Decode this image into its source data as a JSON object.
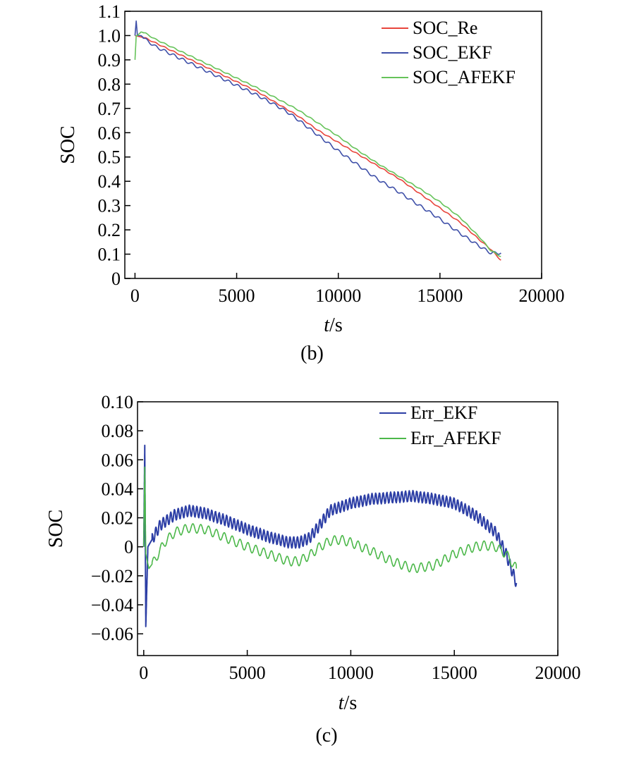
{
  "chart_data": [
    {
      "type": "line",
      "panel": "(b)",
      "caption": "(b)",
      "title": "",
      "xlabel_var": "t",
      "xlabel_unit": "/s",
      "ylabel": "SOC",
      "xlim": [
        -500,
        20000
      ],
      "ylim": [
        0,
        1.1
      ],
      "xticks": [
        0,
        5000,
        10000,
        15000,
        20000
      ],
      "xtick_labels": [
        "0",
        "5000",
        "10000",
        "15000",
        "20000"
      ],
      "yticks": [
        0,
        0.1,
        0.2,
        0.3,
        0.4,
        0.5,
        0.6,
        0.7,
        0.8,
        0.9,
        1.0,
        1.1
      ],
      "ytick_labels": [
        "0",
        "0.1",
        "0.2",
        "0.3",
        "0.4",
        "0.5",
        "0.6",
        "0.7",
        "0.8",
        "0.9",
        "1.0",
        "1.1"
      ],
      "grid": false,
      "legend_position": "top-right",
      "series": [
        {
          "name": "SOC_Re",
          "color": "#e8453c",
          "x": [
            0,
            500,
            1000,
            2000,
            3000,
            4000,
            5000,
            6000,
            7000,
            8000,
            9000,
            10000,
            11000,
            12000,
            13000,
            14000,
            15000,
            16000,
            17000,
            17500,
            18000
          ],
          "y": [
            1.0,
            0.99,
            0.97,
            0.93,
            0.89,
            0.85,
            0.81,
            0.77,
            0.72,
            0.67,
            0.61,
            0.56,
            0.51,
            0.46,
            0.41,
            0.35,
            0.29,
            0.23,
            0.155,
            0.12,
            0.075
          ]
        },
        {
          "name": "SOC_EKF",
          "color": "#3e4fa8",
          "x": [
            0,
            60,
            120,
            300,
            500,
            1000,
            2000,
            3000,
            4000,
            5000,
            6000,
            7000,
            7500,
            8000,
            9000,
            10000,
            11000,
            12000,
            13000,
            14000,
            15000,
            16000,
            17000,
            17500,
            18000
          ],
          "y": [
            1.0,
            1.06,
            1.0,
            1.0,
            0.985,
            0.955,
            0.915,
            0.875,
            0.835,
            0.795,
            0.755,
            0.71,
            0.685,
            0.655,
            0.59,
            0.525,
            0.465,
            0.405,
            0.355,
            0.3,
            0.245,
            0.185,
            0.13,
            0.105,
            0.105
          ]
        },
        {
          "name": "SOC_AFEKF",
          "color": "#66c35a",
          "x": [
            0,
            60,
            120,
            300,
            500,
            1000,
            2000,
            3000,
            4000,
            5000,
            6000,
            7000,
            8000,
            9000,
            10000,
            11000,
            12000,
            13000,
            14000,
            15000,
            16000,
            17000,
            17500,
            18000
          ],
          "y": [
            0.9,
            1.0,
            1.0,
            1.015,
            1.01,
            0.985,
            0.945,
            0.905,
            0.865,
            0.825,
            0.785,
            0.74,
            0.695,
            0.64,
            0.585,
            0.525,
            0.47,
            0.42,
            0.37,
            0.315,
            0.25,
            0.165,
            0.115,
            0.09
          ]
        }
      ]
    },
    {
      "type": "line",
      "panel": "(c)",
      "caption": "(c)",
      "title": "",
      "xlabel_var": "t",
      "xlabel_unit": "/s",
      "ylabel": "SOC",
      "xlim": [
        -300,
        20000
      ],
      "ylim": [
        -0.075,
        0.1
      ],
      "xticks": [
        0,
        5000,
        10000,
        15000,
        20000
      ],
      "xtick_labels": [
        "0",
        "5000",
        "10000",
        "15000",
        "20000"
      ],
      "yticks": [
        -0.06,
        -0.04,
        -0.02,
        0,
        0.02,
        0.04,
        0.06,
        0.08,
        0.1
      ],
      "ytick_labels": [
        "−0.06",
        "−0.04",
        "−0.02",
        "0",
        "0.02",
        "0.04",
        "0.06",
        "0.08",
        "0.10"
      ],
      "grid": false,
      "legend_position": "top-right",
      "series": [
        {
          "name": "Err_EKF",
          "color": "#2c3ea5",
          "x": [
            0,
            50,
            100,
            200,
            400,
            800,
            1500,
            2200,
            3000,
            4000,
            5000,
            6000,
            7000,
            7500,
            8000,
            8500,
            9000,
            10000,
            11000,
            12000,
            13000,
            14000,
            15000,
            16000,
            17000,
            17500,
            18000
          ],
          "y": [
            0.0,
            0.07,
            -0.055,
            0.0,
            0.005,
            0.015,
            0.022,
            0.025,
            0.023,
            0.018,
            0.012,
            0.007,
            0.003,
            0.003,
            0.006,
            0.015,
            0.025,
            0.03,
            0.033,
            0.034,
            0.035,
            0.033,
            0.03,
            0.022,
            0.01,
            -0.005,
            -0.025
          ]
        },
        {
          "name": "Err_AFEKF",
          "color": "#4cb84a",
          "x": [
            0,
            50,
            100,
            250,
            500,
            1000,
            1500,
            2200,
            3000,
            4000,
            5000,
            6000,
            7000,
            7500,
            8000,
            8500,
            9000,
            9500,
            10000,
            11000,
            12000,
            13000,
            14000,
            15000,
            16000,
            16500,
            17000,
            17500,
            18000
          ],
          "y": [
            0.0,
            0.055,
            -0.005,
            -0.015,
            -0.01,
            0.003,
            0.01,
            0.013,
            0.012,
            0.006,
            0.0,
            -0.005,
            -0.01,
            -0.01,
            -0.006,
            0.0,
            0.004,
            0.005,
            0.003,
            -0.003,
            -0.01,
            -0.015,
            -0.013,
            -0.005,
            0.0,
            0.001,
            0.0,
            -0.005,
            -0.015
          ]
        }
      ]
    }
  ]
}
